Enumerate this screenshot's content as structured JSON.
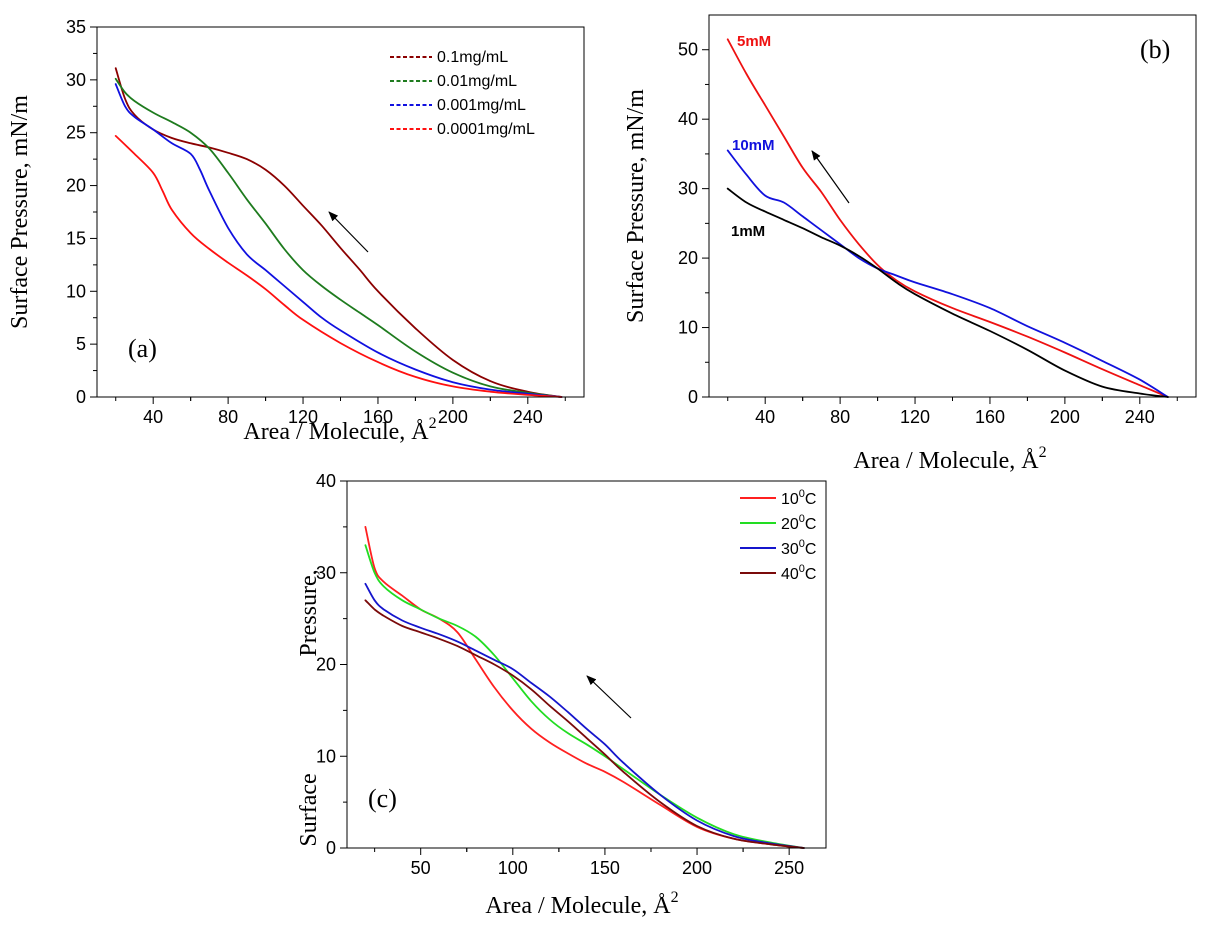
{
  "chart_data": [
    {
      "id": "a",
      "type": "line",
      "panel_label": "(a)",
      "xlabel": "Area / Molecule, Å",
      "xlabel_sup": "2",
      "ylabel": "Surface Pressure, mN/m",
      "xlim": [
        10,
        270
      ],
      "ylim": [
        0,
        35
      ],
      "xticks": [
        40,
        80,
        120,
        160,
        200,
        240
      ],
      "yticks": [
        0,
        5,
        10,
        15,
        20,
        25,
        30,
        35
      ],
      "legend_position": "top-right",
      "legend_style": "dashed",
      "series": [
        {
          "name": "0.1mg/mL",
          "color": "#8B0000",
          "x": [
            20,
            25,
            30,
            40,
            50,
            60,
            70,
            80,
            90,
            100,
            110,
            120,
            130,
            140,
            150,
            160,
            180,
            200,
            220,
            240,
            258
          ],
          "y": [
            31.1,
            28.2,
            26.7,
            25.3,
            24.5,
            24.0,
            23.6,
            23.1,
            22.5,
            21.5,
            20.0,
            18.1,
            16.2,
            14.1,
            12.1,
            10.0,
            6.5,
            3.5,
            1.5,
            0.5,
            0
          ]
        },
        {
          "name": "0.01mg/mL",
          "color": "#1E7B1E",
          "x": [
            20,
            25,
            30,
            40,
            50,
            60,
            70,
            80,
            90,
            100,
            110,
            120,
            130,
            140,
            150,
            160,
            180,
            200,
            220,
            240,
            258
          ],
          "y": [
            30.1,
            28.8,
            28.0,
            26.9,
            26.0,
            25.0,
            23.5,
            21.2,
            18.7,
            16.4,
            14.0,
            12.0,
            10.5,
            9.2,
            8.0,
            6.8,
            4.3,
            2.3,
            1.0,
            0.4,
            0
          ]
        },
        {
          "name": "0.001mg/mL",
          "color": "#1010E0",
          "x": [
            20,
            25,
            30,
            40,
            50,
            60,
            65,
            70,
            80,
            90,
            100,
            110,
            120,
            130,
            140,
            160,
            180,
            200,
            220,
            240,
            258
          ],
          "y": [
            29.6,
            27.5,
            26.5,
            25.3,
            24.0,
            23.0,
            21.5,
            19.5,
            16.0,
            13.5,
            12.0,
            10.5,
            9.0,
            7.5,
            6.3,
            4.2,
            2.6,
            1.4,
            0.7,
            0.3,
            0
          ]
        },
        {
          "name": "0.0001mg/mL",
          "color": "#FF1010",
          "x": [
            20,
            30,
            40,
            45,
            50,
            60,
            70,
            80,
            90,
            100,
            110,
            120,
            140,
            160,
            180,
            200,
            220,
            240,
            258
          ],
          "y": [
            24.7,
            23.0,
            21.2,
            19.5,
            17.7,
            15.5,
            14.0,
            12.7,
            11.5,
            10.2,
            8.7,
            7.3,
            5.1,
            3.3,
            1.9,
            1.0,
            0.5,
            0.2,
            0
          ]
        }
      ]
    },
    {
      "id": "b",
      "type": "line",
      "panel_label": "(b)",
      "xlabel": "Area / Molecule, Å",
      "xlabel_sup": "2",
      "ylabel": "Surface Pressure, mN/m",
      "xlim": [
        10,
        270
      ],
      "ylim": [
        0,
        55
      ],
      "xticks": [
        40,
        80,
        120,
        160,
        200,
        240
      ],
      "yticks": [
        0,
        10,
        20,
        30,
        40,
        50
      ],
      "series": [
        {
          "name": "5mM",
          "color": "#EE1111",
          "x": [
            20,
            30,
            40,
            50,
            60,
            70,
            80,
            90,
            100,
            110,
            120,
            140,
            160,
            180,
            200,
            220,
            240,
            255
          ],
          "y": [
            51.5,
            46.5,
            42.0,
            37.5,
            33.0,
            29.5,
            25.5,
            22.0,
            19.0,
            16.8,
            15.2,
            12.8,
            10.8,
            8.7,
            6.4,
            4.0,
            1.7,
            0
          ]
        },
        {
          "name": "10mM",
          "color": "#1111DD",
          "x": [
            20,
            30,
            40,
            50,
            60,
            70,
            80,
            90,
            100,
            110,
            120,
            140,
            160,
            180,
            200,
            220,
            240,
            255
          ],
          "y": [
            35.5,
            32.0,
            29.0,
            28.0,
            26.0,
            24.0,
            22.0,
            20.0,
            18.5,
            17.5,
            16.5,
            14.8,
            12.8,
            10.2,
            7.8,
            5.2,
            2.5,
            0
          ]
        },
        {
          "name": "1mM",
          "color": "#000000",
          "x": [
            20,
            30,
            40,
            50,
            60,
            70,
            80,
            90,
            100,
            110,
            120,
            140,
            160,
            180,
            200,
            220,
            240,
            255
          ],
          "y": [
            30.0,
            28.0,
            26.7,
            25.5,
            24.3,
            23.0,
            21.8,
            20.3,
            18.5,
            16.5,
            14.8,
            12.0,
            9.5,
            6.8,
            3.8,
            1.5,
            0.5,
            0
          ]
        }
      ],
      "annotations": [
        {
          "text": "5mM",
          "color": "#EE1111"
        },
        {
          "text": "10mM",
          "color": "#1111DD"
        },
        {
          "text": "1mM",
          "color": "#000000"
        }
      ]
    },
    {
      "id": "c",
      "type": "line",
      "panel_label": "(c)",
      "xlabel": "Area / Molecule, Å",
      "xlabel_sup": "2",
      "ylabel_top": "Pressure,",
      "ylabel_bottom": "Surface",
      "xlim": [
        10,
        270
      ],
      "ylim": [
        0,
        40
      ],
      "xticks": [
        50,
        100,
        150,
        200,
        250
      ],
      "yticks": [
        0,
        10,
        20,
        30,
        40
      ],
      "legend_position": "top-right",
      "legend_style": "solid",
      "series": [
        {
          "name": "10",
          "name_sup": "0",
          "name_suffix": "C",
          "color": "#FF2020",
          "x": [
            20,
            25,
            30,
            40,
            50,
            60,
            70,
            80,
            90,
            100,
            110,
            120,
            130,
            140,
            150,
            160,
            180,
            200,
            220,
            240,
            258
          ],
          "y": [
            35.0,
            30.5,
            29.0,
            27.5,
            26.0,
            25.0,
            23.5,
            20.5,
            17.5,
            15.0,
            13.0,
            11.5,
            10.3,
            9.2,
            8.3,
            7.2,
            4.7,
            2.3,
            1.0,
            0.4,
            0
          ]
        },
        {
          "name": "20",
          "name_sup": "0",
          "name_suffix": "C",
          "color": "#22DD22",
          "x": [
            20,
            25,
            30,
            40,
            50,
            60,
            70,
            80,
            90,
            100,
            110,
            120,
            130,
            140,
            150,
            160,
            180,
            200,
            220,
            240,
            258
          ],
          "y": [
            33.0,
            30.0,
            28.5,
            27.0,
            26.0,
            25.0,
            24.2,
            23.0,
            21.0,
            18.5,
            16.0,
            14.0,
            12.5,
            11.3,
            10.0,
            8.6,
            5.8,
            3.3,
            1.5,
            0.6,
            0
          ]
        },
        {
          "name": "30",
          "name_sup": "0",
          "name_suffix": "C",
          "color": "#1515CC",
          "x": [
            20,
            25,
            30,
            40,
            50,
            60,
            70,
            80,
            90,
            100,
            110,
            120,
            130,
            140,
            150,
            160,
            180,
            200,
            220,
            240,
            258
          ],
          "y": [
            28.8,
            27.0,
            26.0,
            24.8,
            24.0,
            23.3,
            22.5,
            21.5,
            20.5,
            19.5,
            18.0,
            16.5,
            14.8,
            13.0,
            11.3,
            9.3,
            5.8,
            3.0,
            1.3,
            0.5,
            0
          ]
        },
        {
          "name": "40",
          "name_sup": "0",
          "name_suffix": "C",
          "color": "#7A0A0A",
          "x": [
            20,
            25,
            30,
            40,
            50,
            60,
            70,
            80,
            90,
            100,
            110,
            120,
            130,
            140,
            150,
            160,
            180,
            200,
            220,
            240,
            258
          ],
          "y": [
            27.0,
            26.0,
            25.3,
            24.2,
            23.5,
            22.8,
            22.0,
            21.0,
            20.0,
            18.8,
            17.3,
            15.5,
            13.8,
            12.0,
            10.2,
            8.3,
            5.0,
            2.4,
            1.0,
            0.4,
            0
          ]
        }
      ]
    }
  ]
}
